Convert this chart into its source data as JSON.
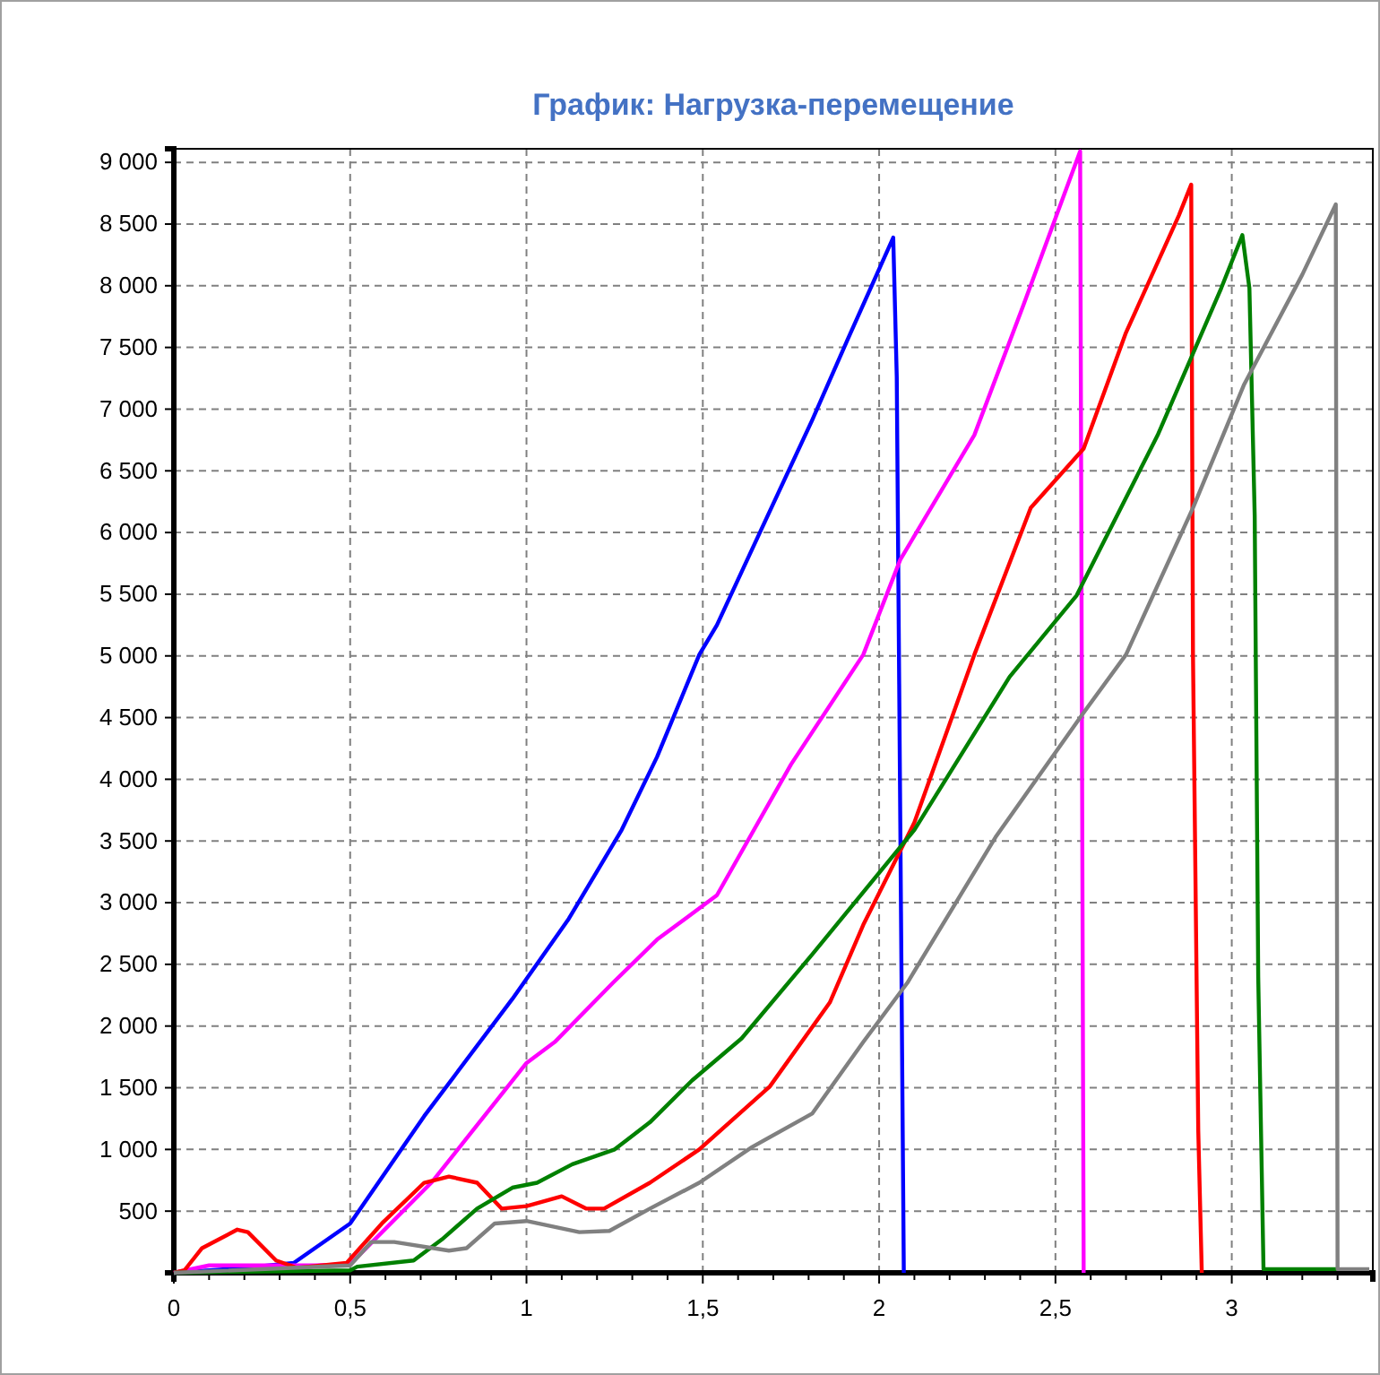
{
  "chart_data": {
    "type": "line",
    "title": "График: Нагрузка-перемещение",
    "xlim": [
      0,
      3.4
    ],
    "ylim": [
      0,
      9110
    ],
    "xticks": [
      0,
      {
        "value": 0.1,
        "label": null
      },
      {
        "value": 0.2,
        "label": null
      },
      {
        "value": 0.3,
        "label": null
      },
      {
        "value": 0.4,
        "label": null
      },
      {
        "value": 0.5,
        "label": "0,5"
      },
      {
        "value": 0.6,
        "label": null
      },
      {
        "value": 0.7,
        "label": null
      },
      {
        "value": 0.8,
        "label": null
      },
      {
        "value": 0.9,
        "label": null
      },
      1,
      {
        "value": 1.1,
        "label": null
      },
      {
        "value": 1.2,
        "label": null
      },
      {
        "value": 1.3,
        "label": null
      },
      {
        "value": 1.4,
        "label": null
      },
      {
        "value": 1.5,
        "label": "1,5"
      },
      {
        "value": 1.6,
        "label": null
      },
      {
        "value": 1.7,
        "label": null
      },
      {
        "value": 1.8,
        "label": null
      },
      {
        "value": 1.9,
        "label": null
      },
      2,
      {
        "value": 2.1,
        "label": null
      },
      {
        "value": 2.2,
        "label": null
      },
      {
        "value": 2.3,
        "label": null
      },
      {
        "value": 2.4,
        "label": null
      },
      {
        "value": 2.5,
        "label": "2,5"
      },
      {
        "value": 2.6,
        "label": null
      },
      {
        "value": 2.7,
        "label": null
      },
      {
        "value": 2.8,
        "label": null
      },
      {
        "value": 2.9,
        "label": null
      },
      3,
      {
        "value": 3.1,
        "label": null
      },
      {
        "value": 3.2,
        "label": null
      },
      {
        "value": 3.3,
        "label": null
      },
      {
        "value": 3.4,
        "label": null
      }
    ],
    "yticks": [
      500,
      {
        "value": 1000,
        "label": "1 000"
      },
      {
        "value": 1500,
        "label": "1 500"
      },
      {
        "value": 2000,
        "label": "2 000"
      },
      {
        "value": 2500,
        "label": "2 500"
      },
      {
        "value": 3000,
        "label": "3 000"
      },
      {
        "value": 3500,
        "label": "3 500"
      },
      {
        "value": 4000,
        "label": "4 000"
      },
      {
        "value": 4500,
        "label": "4 500"
      },
      {
        "value": 5000,
        "label": "5 000"
      },
      {
        "value": 5500,
        "label": "5 500"
      },
      {
        "value": 6000,
        "label": "6 000"
      },
      {
        "value": 6500,
        "label": "6 500"
      },
      {
        "value": 7000,
        "label": "7 000"
      },
      {
        "value": 7500,
        "label": "7 500"
      },
      {
        "value": 8000,
        "label": "8 000"
      },
      {
        "value": 8500,
        "label": "8 500"
      },
      {
        "value": 9000,
        "label": "9 000"
      }
    ],
    "grid": true,
    "marker": "none",
    "line_style": "solid",
    "series": [
      {
        "color": "#0000ff",
        "x": [
          0,
          0.2,
          0.34,
          0.5,
          0.71,
          0.96,
          1.12,
          1.27,
          1.37,
          1.49,
          1.54,
          1.665,
          1.81,
          1.91,
          2.04,
          2.05,
          2.06,
          2.07
        ],
        "values": [
          0,
          40,
          80,
          400,
          1270,
          2220,
          2870,
          3590,
          4180,
          5010,
          5250,
          6020,
          6910,
          7560,
          8390,
          7260,
          3650,
          0
        ]
      },
      {
        "color": "#ff00ff",
        "x": [
          0,
          0.1,
          0.4,
          0.5,
          0.73,
          1.0,
          1.08,
          1.245,
          1.37,
          1.54,
          1.75,
          1.955,
          2.06,
          2.27,
          2.41,
          2.57,
          2.58
        ],
        "values": [
          0,
          60,
          60,
          70,
          730,
          1700,
          1870,
          2350,
          2700,
          3060,
          4120,
          5010,
          5780,
          6790,
          7850,
          9090,
          0
        ]
      },
      {
        "color": "#ff0000",
        "x": [
          0,
          0.03,
          0.08,
          0.18,
          0.21,
          0.29,
          0.35,
          0.49,
          0.59,
          0.71,
          0.78,
          0.86,
          0.93,
          1.0,
          1.1,
          1.17,
          1.22,
          1.35,
          1.49,
          1.69,
          1.86,
          1.955,
          2.1,
          2.27,
          2.43,
          2.58,
          2.7,
          2.85,
          2.885,
          2.89,
          2.905,
          2.915
        ],
        "values": [
          0,
          20,
          200,
          350,
          330,
          100,
          40,
          80,
          400,
          730,
          780,
          730,
          520,
          540,
          620,
          520,
          520,
          730,
          1000,
          1510,
          2190,
          2820,
          3650,
          5010,
          6200,
          6680,
          7620,
          8570,
          8820,
          5010,
          1150,
          0
        ]
      },
      {
        "color": "#008000",
        "x": [
          0,
          0.5,
          0.52,
          0.68,
          0.76,
          0.86,
          0.96,
          1.03,
          1.13,
          1.25,
          1.35,
          1.47,
          1.61,
          1.81,
          2.1,
          2.37,
          2.56,
          2.79,
          2.97,
          3.03,
          3.05,
          3.065,
          3.075,
          3.09,
          3.3
        ],
        "values": [
          0,
          20,
          50,
          100,
          270,
          520,
          690,
          730,
          880,
          1000,
          1220,
          1560,
          1900,
          2580,
          3590,
          4830,
          5490,
          6790,
          7980,
          8410,
          7980,
          6140,
          2400,
          30,
          30
        ]
      },
      {
        "color": "#808080",
        "x": [
          0,
          0.5,
          0.56,
          0.625,
          0.78,
          0.83,
          0.91,
          1.0,
          1.15,
          1.235,
          1.35,
          1.49,
          1.64,
          1.81,
          1.955,
          2.08,
          2.33,
          2.58,
          2.7,
          2.89,
          3.035,
          3.2,
          3.295,
          3.3,
          3.39
        ],
        "values": [
          0,
          60,
          250,
          250,
          180,
          200,
          400,
          420,
          330,
          340,
          520,
          730,
          1020,
          1290,
          1870,
          2350,
          3530,
          4540,
          5010,
          6200,
          7200,
          8090,
          8660,
          30,
          30
        ]
      }
    ]
  }
}
